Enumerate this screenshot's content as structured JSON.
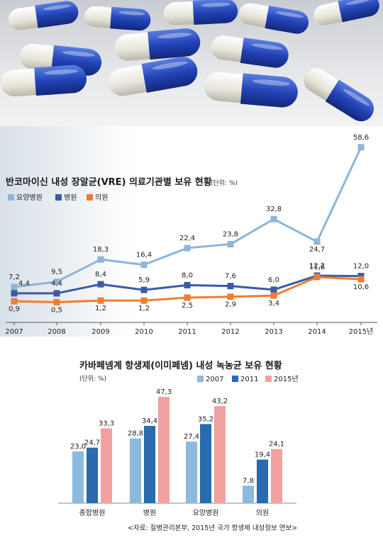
{
  "colors": {
    "nursing": "#8fb5d8",
    "hospital": "#3a5aa8",
    "clinic": "#ef7d2f",
    "c2_2007": "#8cb9de",
    "c2_2011": "#2a6aaf",
    "c2_2015": "#f2a1a1"
  },
  "hero": {
    "icon": "capsules-photo"
  },
  "chart_data": [
    {
      "type": "line",
      "title": "반코마이신 내성 장알균(VRE) 의료기관별 보유 현황",
      "unit": "(단위: %)",
      "x": [
        "2007",
        "2008",
        "2009",
        "2010",
        "2011",
        "2012",
        "2013",
        "2014",
        "2015년"
      ],
      "series": [
        {
          "name": "요양병원",
          "values": [
            7.2,
            9.5,
            18.3,
            16.4,
            22.4,
            23.8,
            32.8,
            24.7,
            58.6
          ],
          "labels": [
            "7,2",
            "9,5",
            "18,3",
            "16,4",
            "22,4",
            "23,8",
            "32,8",
            "24,7",
            "58,6"
          ]
        },
        {
          "name": "병원",
          "values": [
            4.4,
            4.4,
            8.4,
            5.9,
            8.0,
            7.6,
            6.0,
            12.2,
            12.0
          ],
          "labels": [
            "4,4",
            "4,4",
            "8,4",
            "5,9",
            "8,0",
            "7,6",
            "6,0",
            "12,2",
            "12,0"
          ]
        },
        {
          "name": "의원",
          "values": [
            0.9,
            0.5,
            1.2,
            1.2,
            2.5,
            2.9,
            3.4,
            11.6,
            10.6
          ],
          "labels": [
            "0,9",
            "0,5",
            "1,2",
            "1,2",
            "2,5",
            "2,9",
            "3,4",
            "11,6",
            "10,6"
          ]
        }
      ],
      "legend_position": "top-left",
      "grid": false
    },
    {
      "type": "bar",
      "title": "카바페넴계 항생제(이미페넴) 내성 녹농균 보유 현황",
      "unit": "(단위: %)",
      "categories": [
        "종합병원",
        "병원",
        "요양병원",
        "의원"
      ],
      "series": [
        {
          "name": "2007",
          "values": [
            23.0,
            28.8,
            27.4,
            7.8
          ],
          "labels": [
            "23,0",
            "28,8",
            "27,4",
            "7,8"
          ]
        },
        {
          "name": "2011",
          "values": [
            24.7,
            34.4,
            35.2,
            19.4
          ],
          "labels": [
            "24,7",
            "34,4",
            "35,2",
            "19,4"
          ]
        },
        {
          "name": "2015년",
          "values": [
            33.3,
            47.3,
            43.2,
            24.1
          ],
          "labels": [
            "33,3",
            "47,3",
            "43,2",
            "24,1"
          ]
        }
      ],
      "legend_position": "top-right",
      "grid": false,
      "source": "<자료: 질병관리본부, 2015년 국가 항생제 내성정보 연보>"
    }
  ]
}
